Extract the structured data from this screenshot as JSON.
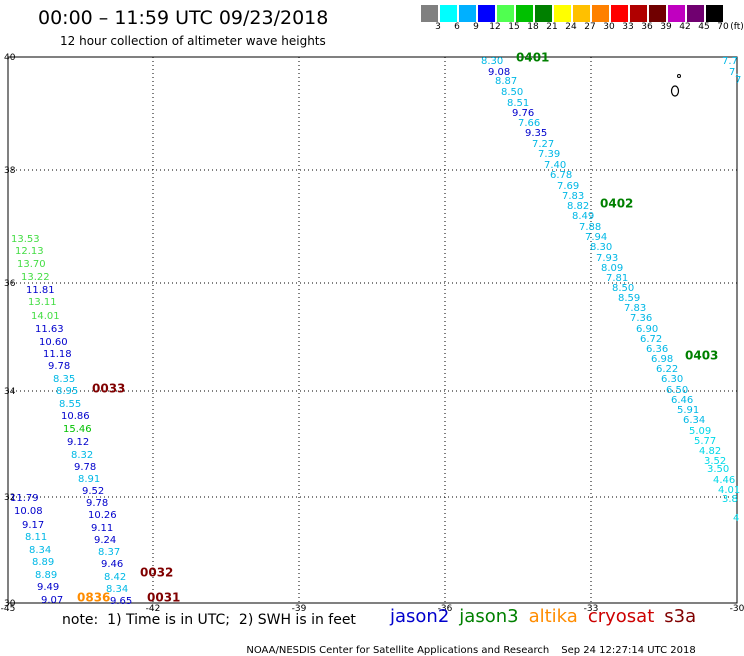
{
  "title": "00:00 – 11:59 UTC 09/23/2018",
  "subtitle": "12 hour collection of altimeter wave heights",
  "legend": {
    "colors": [
      "#808080",
      "#00ffff",
      "#00b0ff",
      "#0000ff",
      "#50ff50",
      "#00c000",
      "#008000",
      "#ffff00",
      "#ffc000",
      "#ff8000",
      "#ff0000",
      "#b00000",
      "#700000",
      "#c000c0",
      "#700070",
      "#000000"
    ],
    "labels": [
      "3",
      "6",
      "9",
      "12",
      "15",
      "18",
      "21",
      "24",
      "27",
      "30",
      "33",
      "36",
      "39",
      "42",
      "45",
      "70"
    ],
    "unit": "(ft)"
  },
  "axes": {
    "lon_ticks": [
      "-45",
      "-42",
      "-39",
      "-36",
      "-33",
      "-30"
    ],
    "lat_ticks": [
      "40",
      "38",
      "36",
      "34",
      "32",
      "30"
    ]
  },
  "colors": {
    "jason2": "#0000cc",
    "jason3": "#008000",
    "altika": "#ff8c00",
    "cryosat": "#cc0000",
    "s3a": "#800000",
    "light_cyan": "#00b8e6",
    "cyan": "#00d8e8",
    "light_green": "#44dd44",
    "dark_red": "#800000"
  },
  "time_labels": [
    {
      "text": "0401",
      "color": "#008000"
    },
    {
      "text": "0402",
      "color": "#008000"
    },
    {
      "text": "0403",
      "color": "#008000"
    },
    {
      "text": "0033",
      "color": "#800000"
    },
    {
      "text": "0032",
      "color": "#800000"
    },
    {
      "text": "0031",
      "color": "#800000"
    },
    {
      "text": "0836",
      "color": "#ff8c00"
    }
  ],
  "tracks": [
    {
      "name": "east-track",
      "values": [
        [
          "8.30",
          "#00b8e6"
        ],
        [
          "9.08",
          "#0000cc"
        ],
        [
          "8.87",
          "#00b8e6"
        ],
        [
          "8.50",
          "#00b8e6"
        ],
        [
          "8.51",
          "#00b8e6"
        ],
        [
          "9.76",
          "#0000cc"
        ],
        [
          "7.66",
          "#00b8e6"
        ],
        [
          "9.35",
          "#0000cc"
        ],
        [
          "7.27",
          "#00b8e6"
        ],
        [
          "7.39",
          "#00b8e6"
        ],
        [
          "7.40",
          "#00b8e6"
        ],
        [
          "6.78",
          "#00b8e6"
        ],
        [
          "7.69",
          "#00b8e6"
        ],
        [
          "7.83",
          "#00b8e6"
        ],
        [
          "8.82",
          "#00b8e6"
        ],
        [
          "8.49",
          "#00b8e6"
        ],
        [
          "7.88",
          "#00b8e6"
        ],
        [
          "7.94",
          "#00b8e6"
        ],
        [
          "8.30",
          "#00b8e6"
        ],
        [
          "7.93",
          "#00b8e6"
        ],
        [
          "8.09",
          "#00b8e6"
        ],
        [
          "7.81",
          "#00b8e6"
        ],
        [
          "8.50",
          "#00b8e6"
        ],
        [
          "8.59",
          "#00b8e6"
        ],
        [
          "7.83",
          "#00b8e6"
        ],
        [
          "7.36",
          "#00b8e6"
        ],
        [
          "6.90",
          "#00b8e6"
        ],
        [
          "6.72",
          "#00b8e6"
        ],
        [
          "6.36",
          "#00b8e6"
        ],
        [
          "6.98",
          "#00b8e6"
        ],
        [
          "6.22",
          "#00b8e6"
        ],
        [
          "6.30",
          "#00b8e6"
        ],
        [
          "6.50",
          "#00b8e6"
        ],
        [
          "6.46",
          "#00b8e6"
        ],
        [
          "5.91",
          "#00b8e6"
        ],
        [
          "6.34",
          "#00b8e6"
        ],
        [
          "5.09",
          "#00d8e8"
        ],
        [
          "5.77",
          "#00d8e8"
        ],
        [
          "4.82",
          "#00d8e8"
        ],
        [
          "3.52",
          "#00d8e8"
        ],
        [
          "3.50",
          "#00d8e8"
        ],
        [
          "4.46",
          "#00d8e8"
        ],
        [
          "4.01",
          "#00d8e8"
        ],
        [
          "3.8",
          "#00d8e8"
        ],
        [
          "4",
          "#00d8e8"
        ]
      ]
    },
    {
      "name": "west-track",
      "values": [
        [
          "13.53",
          "#44dd44"
        ],
        [
          "12.13",
          "#44dd44"
        ],
        [
          "13.70",
          "#44dd44"
        ],
        [
          "13.22",
          "#44dd44"
        ],
        [
          "11.81",
          "#0000cc"
        ],
        [
          "13.11",
          "#44dd44"
        ],
        [
          "14.01",
          "#44dd44"
        ],
        [
          "11.63",
          "#0000cc"
        ],
        [
          "10.60",
          "#0000cc"
        ],
        [
          "11.18",
          "#0000cc"
        ],
        [
          "9.78",
          "#0000cc"
        ],
        [
          "8.35",
          "#00b8e6"
        ],
        [
          "8.95",
          "#00b8e6"
        ],
        [
          "8.55",
          "#00b8e6"
        ],
        [
          "10.86",
          "#0000cc"
        ],
        [
          "15.46",
          "#00c000"
        ],
        [
          "9.12",
          "#0000cc"
        ],
        [
          "8.32",
          "#00b8e6"
        ],
        [
          "9.78",
          "#0000cc"
        ],
        [
          "8.91",
          "#00b8e6"
        ],
        [
          "9.52",
          "#0000cc"
        ],
        [
          "9.78",
          "#0000cc"
        ],
        [
          "10.26",
          "#0000cc"
        ],
        [
          "9.11",
          "#0000cc"
        ],
        [
          "9.24",
          "#0000cc"
        ],
        [
          "8.37",
          "#00b8e6"
        ],
        [
          "9.46",
          "#0000cc"
        ],
        [
          "8.42",
          "#00b8e6"
        ],
        [
          "8.34",
          "#00b8e6"
        ],
        [
          "9.65",
          "#0000cc"
        ]
      ]
    },
    {
      "name": "far-west-track",
      "values": [
        [
          "11.79",
          "#0000cc"
        ],
        [
          "10.08",
          "#0000cc"
        ],
        [
          "9.17",
          "#0000cc"
        ],
        [
          "8.11",
          "#00b8e6"
        ],
        [
          "8.34",
          "#00b8e6"
        ],
        [
          "8.89",
          "#00b8e6"
        ],
        [
          "8.89",
          "#00b8e6"
        ],
        [
          "9.49",
          "#0000cc"
        ],
        [
          "9.07",
          "#0000cc"
        ]
      ]
    },
    {
      "name": "edge-track",
      "values": [
        [
          "7.7",
          "#00b8e6"
        ],
        [
          "7.",
          "#00b8e6"
        ],
        [
          "7",
          "#00b8e6"
        ]
      ]
    }
  ],
  "note": "note:  1) Time is in UTC;  2) SWH is in feet",
  "satellites": [
    {
      "name": "jason2",
      "color": "#0000cc"
    },
    {
      "name": "jason3",
      "color": "#008000"
    },
    {
      "name": "altika",
      "color": "#ff8c00"
    },
    {
      "name": "cryosat",
      "color": "#cc0000"
    },
    {
      "name": "s3a",
      "color": "#800000"
    }
  ],
  "credit": "NOAA/NESDIS Center for Satellite Applications and Research",
  "timestamp": "Sep 24 12:27:14 UTC 2018"
}
